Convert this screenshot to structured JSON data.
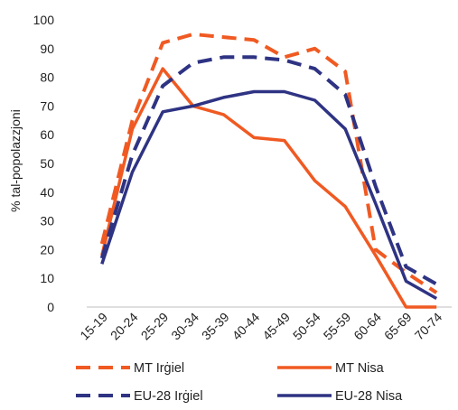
{
  "chart_data": {
    "type": "line",
    "ylabel": "% tal-popolazzjoni",
    "ylim": [
      0,
      100
    ],
    "yticks": [
      0,
      10,
      20,
      30,
      40,
      50,
      60,
      70,
      80,
      90,
      100
    ],
    "categories": [
      "15-19",
      "20-24",
      "25-29",
      "30-34",
      "35-39",
      "40-44",
      "45-49",
      "50-54",
      "55-59",
      "60-64",
      "65-69",
      "70-74"
    ],
    "series": [
      {
        "name": "MT Irġiel",
        "color": "#f05a22",
        "dash": "dashed",
        "values": [
          22,
          65,
          92,
          95,
          94,
          93,
          87,
          90,
          82,
          20,
          12,
          5
        ]
      },
      {
        "name": "MT Nisa",
        "color": "#f05a22",
        "dash": "solid",
        "values": [
          18,
          62,
          83,
          70,
          67,
          59,
          58,
          44,
          35,
          18,
          0,
          0
        ]
      },
      {
        "name": "EU-28 Irġiel",
        "color": "#2e3383",
        "dash": "dashed",
        "values": [
          17,
          53,
          77,
          85,
          87,
          87,
          86,
          83,
          74,
          42,
          14,
          8
        ]
      },
      {
        "name": "EU-28 Nisa",
        "color": "#2e3383",
        "dash": "solid",
        "values": [
          15,
          47,
          68,
          70,
          73,
          75,
          75,
          72,
          62,
          36,
          9,
          3
        ]
      }
    ],
    "legend_position": "bottom",
    "grid": false
  }
}
